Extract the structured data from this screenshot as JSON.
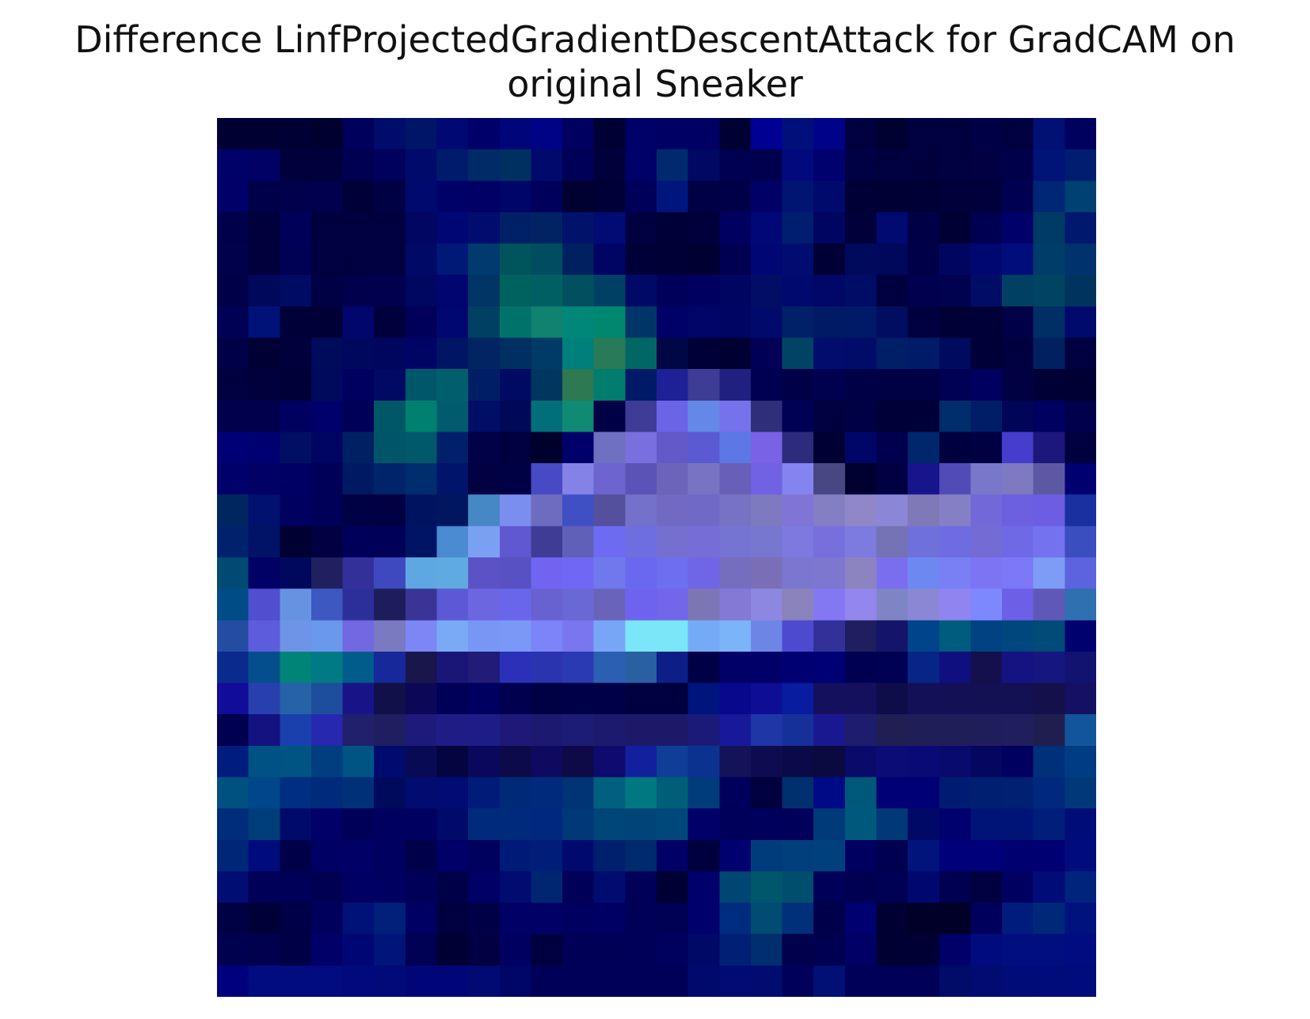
{
  "chart_data": {
    "type": "heatmap",
    "title_lines": [
      "Difference LinfProjectedGradientDescentAttack for GradCAM on",
      "original Sneaker"
    ],
    "xlabel": "",
    "ylabel": "",
    "axes_visible": false,
    "grid": false,
    "rows": 28,
    "cols": 28,
    "description": "28x28 pixel overlay heatmap of GradCAM attribution difference on a sneaker image; dark blue background with violet/lavender sneaker silhouette and teal highlights",
    "cells_hex": [
      [
        "#000032",
        "#000033",
        "#000035",
        "#00002f",
        "#00005c",
        "#000c6a",
        "#001568",
        "#000873",
        "#00006b",
        "#000678",
        "#000385",
        "#000060",
        "#000034",
        "#000069",
        "#000064",
        "#000064",
        "#000032",
        "#000093",
        "#000f7a",
        "#000387",
        "#000040",
        "#000031",
        "#00003f",
        "#00003e",
        "#000047",
        "#000040",
        "#001073",
        "#00005e"
      ],
      [
        "#000069",
        "#000065",
        "#00003c",
        "#00003d",
        "#000052",
        "#00005d",
        "#000a6a",
        "#001b6b",
        "#002b66",
        "#003060",
        "#000a6c",
        "#000058",
        "#00003b",
        "#000069",
        "#002a6d",
        "#000863",
        "#000051",
        "#00004f",
        "#000a7c",
        "#00006f",
        "#000044",
        "#00003e",
        "#00003d",
        "#000041",
        "#000043",
        "#00004a",
        "#001377",
        "#001d6f"
      ],
      [
        "#000068",
        "#00004a",
        "#00004c",
        "#00004f",
        "#000038",
        "#000045",
        "#000a6e",
        "#000069",
        "#000067",
        "#000569",
        "#00005c",
        "#000031",
        "#000039",
        "#00005a",
        "#00157e",
        "#000045",
        "#000048",
        "#000067",
        "#001572",
        "#000a6c",
        "#000036",
        "#000034",
        "#000037",
        "#00003a",
        "#00003c",
        "#000050",
        "#002775",
        "#004173"
      ],
      [
        "#00004a",
        "#00003c",
        "#000059",
        "#00003e",
        "#00003e",
        "#000040",
        "#000662",
        "#000775",
        "#000c6e",
        "#002066",
        "#002364",
        "#00126a",
        "#000b74",
        "#000040",
        "#000039",
        "#00003d",
        "#000060",
        "#000877",
        "#001e70",
        "#000562",
        "#00003a",
        "#000a70",
        "#000047",
        "#000035",
        "#000052",
        "#00006a",
        "#003b66",
        "#00186e"
      ],
      [
        "#00004b",
        "#00003c",
        "#000054",
        "#000040",
        "#00003f",
        "#000040",
        "#000966",
        "#001876",
        "#003a6e",
        "#00555c",
        "#004d60",
        "#002160",
        "#000464",
        "#000039",
        "#000036",
        "#000032",
        "#000053",
        "#000674",
        "#000c70",
        "#000036",
        "#000a5c",
        "#00085c",
        "#000049",
        "#000660",
        "#000770",
        "#000d7b",
        "#003d68",
        "#00336e"
      ],
      [
        "#000049",
        "#00085c",
        "#000b63",
        "#000044",
        "#00004d",
        "#00004e",
        "#000761",
        "#00056f",
        "#003565",
        "#00625e",
        "#005f62",
        "#005060",
        "#004064",
        "#000a66",
        "#00005b",
        "#000060",
        "#000561",
        "#000e66",
        "#000a6e",
        "#000766",
        "#000d66",
        "#000040",
        "#00004f",
        "#000250",
        "#000d66",
        "#004063",
        "#004363",
        "#00335e"
      ],
      [
        "#000055",
        "#001277",
        "#000039",
        "#000036",
        "#00066c",
        "#00003d",
        "#00005a",
        "#000770",
        "#004063",
        "#00726a",
        "#10826f",
        "#00877a",
        "#00876f",
        "#003667",
        "#000069",
        "#000567",
        "#000563",
        "#000a6a",
        "#002068",
        "#001a66",
        "#001a68",
        "#000d60",
        "#000040",
        "#000036",
        "#000039",
        "#000049",
        "#002f66",
        "#000a6d"
      ],
      [
        "#000049",
        "#000034",
        "#00003d",
        "#000b5c",
        "#00085d",
        "#00055e",
        "#000565",
        "#001563",
        "#002562",
        "#003062",
        "#003a66",
        "#00807a",
        "#287b56",
        "#006764",
        "#000745",
        "#000038",
        "#000032",
        "#000056",
        "#004365",
        "#000d6c",
        "#000c6a",
        "#001f67",
        "#001c68",
        "#000a5e",
        "#000038",
        "#000040",
        "#00205f",
        "#000040"
      ],
      [
        "#00003f",
        "#00003c",
        "#000038",
        "#000a5d",
        "#000061",
        "#000a65",
        "#00576a",
        "#005f6d",
        "#001e64",
        "#000a62",
        "#003760",
        "#2e7852",
        "#007d6c",
        "#001a65",
        "#1e2095",
        "#3f3c96",
        "#1f2080",
        "#000052",
        "#000049",
        "#000050",
        "#000046",
        "#000044",
        "#000044",
        "#000054",
        "#000061",
        "#000043",
        "#000036",
        "#000035"
      ],
      [
        "#00004c",
        "#00004d",
        "#000061",
        "#00006c",
        "#000059",
        "#005765",
        "#00806e",
        "#005c6c",
        "#000e65",
        "#000858",
        "#006f7a",
        "#108a72",
        "#000046",
        "#3e3c96",
        "#6b64e6",
        "#6488e7",
        "#7572ec",
        "#2f2e7a",
        "#000054",
        "#000040",
        "#000044",
        "#000038",
        "#000038",
        "#002d6b",
        "#001e68",
        "#000557",
        "#000060",
        "#00004c"
      ],
      [
        "#000076",
        "#000072",
        "#000e64",
        "#000463",
        "#002064",
        "#005569",
        "#00586b",
        "#00206b",
        "#000146",
        "#00003f",
        "#00002c",
        "#00006a",
        "#6f70c1",
        "#7a6fde",
        "#6459c8",
        "#5b5ad2",
        "#5b78e4",
        "#7962e6",
        "#2c2b7c",
        "#000035",
        "#000668",
        "#00004f",
        "#00266b",
        "#000040",
        "#000043",
        "#463dcd",
        "#1c177a",
        "#00003e"
      ],
      [
        "#00006a",
        "#000065",
        "#000064",
        "#000058",
        "#001a62",
        "#00246a",
        "#002d6d",
        "#00146c",
        "#000043",
        "#000045",
        "#4749c5",
        "#8482e6",
        "#6e64cf",
        "#5b53b6",
        "#6c64bb",
        "#7874c4",
        "#6860b8",
        "#7062e2",
        "#8483f0",
        "#474783",
        "#000030",
        "#000043",
        "#17148c",
        "#514bb7",
        "#7877c9",
        "#7e79c1",
        "#5d58a3",
        "#000072"
      ],
      [
        "#002660",
        "#00116e",
        "#000060",
        "#000058",
        "#000044",
        "#000042",
        "#001361",
        "#00165f",
        "#4588c5",
        "#7a8eef",
        "#6d6cbf",
        "#3e50c4",
        "#54509e",
        "#7371c9",
        "#7169c2",
        "#7069c6",
        "#7872c5",
        "#7e7ac0",
        "#8075d6",
        "#847ec3",
        "#8f87c8",
        "#8c86d7",
        "#7f79b7",
        "#8580c6",
        "#7268d8",
        "#6c60e0",
        "#6c5de3",
        "#1a30a0"
      ],
      [
        "#00226c",
        "#001366",
        "#000032",
        "#000042",
        "#00005a",
        "#000058",
        "#001465",
        "#4a8bd2",
        "#7aa0f2",
        "#5f58d0",
        "#3f3c96",
        "#6160b9",
        "#6e6bf3",
        "#6e6ee0",
        "#7570d0",
        "#776dd6",
        "#7574d2",
        "#7877d0",
        "#7d79de",
        "#776fdc",
        "#7d7ae0",
        "#7473b5",
        "#7070dd",
        "#6f6be0",
        "#726cd4",
        "#7069e6",
        "#7472ee",
        "#3a4ec0"
      ],
      [
        "#004a74",
        "#000065",
        "#00085d",
        "#202060",
        "#34309a",
        "#3e49c0",
        "#5fa7e2",
        "#5faae0",
        "#5b52c6",
        "#5751c4",
        "#7064f0",
        "#7068f4",
        "#6f78ec",
        "#6968ee",
        "#6e6ef0",
        "#7065e6",
        "#756ebe",
        "#7a6eb6",
        "#7b76d0",
        "#7d77d0",
        "#8b84c0",
        "#7a6eee",
        "#6e88f2",
        "#7880f4",
        "#7c74f2",
        "#7c78f8",
        "#7d9cf5",
        "#5b64de"
      ],
      [
        "#004c87",
        "#524ed0",
        "#6792e2",
        "#3d58c0",
        "#2c2e9a",
        "#1d1d5c",
        "#393495",
        "#5c58d6",
        "#6c66e0",
        "#6a66ec",
        "#6861d0",
        "#6a68d4",
        "#6a63bc",
        "#6e63ee",
        "#7266eb",
        "#7c77b4",
        "#8479d4",
        "#8c88e2",
        "#8a83bc",
        "#8378f2",
        "#9386ed",
        "#7e84c4",
        "#8a87d4",
        "#9084f0",
        "#7e88fe",
        "#6c60e6",
        "#6058b8",
        "#2e70b0"
      ],
      [
        "#244da2",
        "#5c5cdd",
        "#6e94e8",
        "#6a98ea",
        "#7268e2",
        "#7a7ac0",
        "#7c86f4",
        "#7aaaf5",
        "#7896f4",
        "#7a98f6",
        "#7b84f8",
        "#7a76f0",
        "#78a6f6",
        "#7ae6f8",
        "#7ae6f8",
        "#74aaf6",
        "#7bb4f8",
        "#6d86e6",
        "#4d4ad0",
        "#34309a",
        "#1f1f60",
        "#14146a",
        "#00448c",
        "#005c7e",
        "#004282",
        "#00477d",
        "#004b78",
        "#00006e"
      ],
      [
        "#0a2a8e",
        "#044e8e",
        "#008478",
        "#007a84",
        "#005c8a",
        "#16289a",
        "#18164a",
        "#1a1678",
        "#201c78",
        "#2a30b8",
        "#2a34ae",
        "#2a3ab2",
        "#2a5fb2",
        "#2860a2",
        "#0d1e86",
        "#000046",
        "#000068",
        "#000068",
        "#000072",
        "#000074",
        "#000052",
        "#000054",
        "#072586",
        "#0f0f80",
        "#14104e",
        "#151382",
        "#161680",
        "#121270"
      ],
      [
        "#120c9a",
        "#2840ae",
        "#2662a8",
        "#1d4e9e",
        "#181488",
        "#111048",
        "#0b0858",
        "#000058",
        "#000060",
        "#00004e",
        "#000044",
        "#000048",
        "#000048",
        "#000041",
        "#000041",
        "#00147e",
        "#08088c",
        "#0e0e94",
        "#081ca0",
        "#14105e",
        "#14105e",
        "#0e0d4a",
        "#141058",
        "#141056",
        "#141054",
        "#141054",
        "#14104c",
        "#141062"
      ],
      [
        "#000050",
        "#141280",
        "#1a40ae",
        "#2628b0",
        "#20206c",
        "#1e1e60",
        "#1e1a7c",
        "#201c86",
        "#1e1c86",
        "#1e1878",
        "#1c1a70",
        "#1c1c76",
        "#1c1a6e",
        "#1c1a68",
        "#1c1a68",
        "#1c1a78",
        "#18189a",
        "#1e36a6",
        "#16309a",
        "#1a1890",
        "#1e1c6c",
        "#201e52",
        "#201e56",
        "#201e58",
        "#201e5a",
        "#201e5c",
        "#201e4e",
        "#12559c"
      ],
      [
        "#001c7e",
        "#005284",
        "#005484",
        "#003e80",
        "#005484",
        "#000b70",
        "#080a54",
        "#040440",
        "#0a085c",
        "#0c0a48",
        "#0e0a60",
        "#0e0a48",
        "#0e0a6e",
        "#12209e",
        "#0e3e98",
        "#0c3290",
        "#141258",
        "#0e0c50",
        "#0a0a48",
        "#0a0a40",
        "#0a0a6a",
        "#0c0c76",
        "#0a0a76",
        "#080a6c",
        "#040660",
        "#000060",
        "#00307a",
        "#003c84"
      ],
      [
        "#005080",
        "#00468a",
        "#002e80",
        "#002a7c",
        "#003078",
        "#000a5c",
        "#000c70",
        "#000c74",
        "#001c78",
        "#002a78",
        "#002a7c",
        "#003474",
        "#00607e",
        "#007882",
        "#005e78",
        "#003c7c",
        "#00005c",
        "#00003e",
        "#00306e",
        "#000a86",
        "#005878",
        "#000074",
        "#000074",
        "#001c72",
        "#001f71",
        "#002071",
        "#00287c",
        "#00387a"
      ],
      [
        "#002c7c",
        "#003e7a",
        "#000a68",
        "#000068",
        "#000059",
        "#000060",
        "#000060",
        "#000a68",
        "#002a7c",
        "#002a7c",
        "#00287c",
        "#003878",
        "#004678",
        "#004478",
        "#00487a",
        "#000068",
        "#00005a",
        "#00005c",
        "#00005a",
        "#003a78",
        "#00587c",
        "#003878",
        "#000a66",
        "#00006e",
        "#001478",
        "#001478",
        "#001f7a",
        "#000c78"
      ],
      [
        "#002678",
        "#000c7c",
        "#000048",
        "#000064",
        "#000066",
        "#000060",
        "#00004a",
        "#000068",
        "#00005e",
        "#001a78",
        "#001d78",
        "#000a6e",
        "#00206e",
        "#002a6e",
        "#000066",
        "#00003e",
        "#00006e",
        "#003c7c",
        "#003e7c",
        "#00407c",
        "#000060",
        "#000050",
        "#00147c",
        "#00007a",
        "#00007a",
        "#000070",
        "#000072",
        "#000c7c"
      ],
      [
        "#000e74",
        "#000058",
        "#000058",
        "#000052",
        "#000062",
        "#000060",
        "#000059",
        "#000048",
        "#000066",
        "#000c70",
        "#002672",
        "#000058",
        "#000c70",
        "#000058",
        "#000034",
        "#00006c",
        "#004672",
        "#00566a",
        "#004e6e",
        "#000058",
        "#000050",
        "#000054",
        "#000870",
        "#000050",
        "#000040",
        "#000060",
        "#000c78",
        "#00247c"
      ],
      [
        "#000044",
        "#000038",
        "#000048",
        "#00005c",
        "#001278",
        "#00207a",
        "#000064",
        "#000040",
        "#000046",
        "#000066",
        "#000066",
        "#000060",
        "#000064",
        "#000058",
        "#000054",
        "#00006c",
        "#002c80",
        "#004c72",
        "#00307a",
        "#00004a",
        "#000070",
        "#000032",
        "#000028",
        "#000028",
        "#00005c",
        "#001c7c",
        "#002878",
        "#00127e"
      ],
      [
        "#000050",
        "#00004f",
        "#000046",
        "#000068",
        "#000774",
        "#001479",
        "#000054",
        "#000034",
        "#000042",
        "#000060",
        "#00003e",
        "#000056",
        "#000056",
        "#000058",
        "#00005e",
        "#000a66",
        "#002076",
        "#002e6e",
        "#00004c",
        "#000050",
        "#000066",
        "#000032",
        "#000034",
        "#000068",
        "#000c7e",
        "#000e7e",
        "#000e7e",
        "#000c80"
      ],
      [
        "#00007e",
        "#000c80",
        "#000c80",
        "#000c80",
        "#000a7c",
        "#000a78",
        "#000678",
        "#000678",
        "#000a72",
        "#000666",
        "#000058",
        "#000058",
        "#000058",
        "#000058",
        "#000058",
        "#000a6c",
        "#000c74",
        "#000c70",
        "#00005a",
        "#001074",
        "#000058",
        "#000058",
        "#000058",
        "#000c68",
        "#000c72",
        "#000c78",
        "#000c7a",
        "#000c7c"
      ]
    ]
  }
}
